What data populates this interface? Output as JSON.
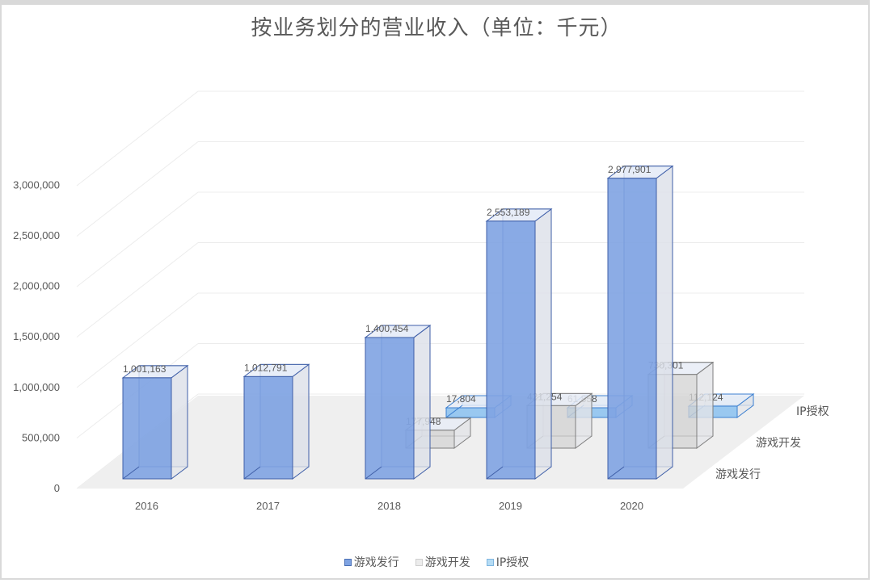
{
  "chart_data": {
    "type": "bar",
    "subtype": "3d-column",
    "title": "按业务划分的营业收入（单位：千元）",
    "xlabel": "",
    "ylabel": "",
    "categories": [
      "2016",
      "2017",
      "2018",
      "2019",
      "2020"
    ],
    "series": [
      {
        "name": "游戏发行",
        "values": [
          1001163,
          1012791,
          1400454,
          2553189,
          2977901
        ],
        "color": "#7fa3e2",
        "stroke": "#3f5fa8"
      },
      {
        "name": "游戏开发",
        "values": [
          null,
          null,
          177948,
          421254,
          730301
        ],
        "color": "#d3d3d3",
        "stroke": "#7f7f7f"
      },
      {
        "name": "IP授权",
        "values": [
          null,
          null,
          17804,
          61858,
          112124
        ],
        "color": "#8fc3ef",
        "stroke": "#3b7fd0"
      }
    ],
    "data_labels": {
      "游戏发行": [
        "1,001,163",
        "1,012,791",
        "1,400,454",
        "2,553,189",
        "2,977,901"
      ],
      "游戏开发": [
        "",
        "",
        "177,948",
        "421,254",
        "730,301"
      ],
      "IP授权": [
        "",
        "",
        "17,804",
        "61,858",
        "112,124"
      ]
    },
    "yticks": [
      "0",
      "500,000",
      "1,000,000",
      "1,500,000",
      "2,000,000",
      "2,500,000",
      "3,000,000"
    ],
    "ylim": [
      0,
      3000000
    ],
    "grid": true,
    "legend_position": "bottom"
  },
  "title": "按业务划分的营业收入（单位：千元）",
  "legend": [
    {
      "label": "游戏发行",
      "color": "#7fa3e2",
      "border": "#4a6fb5"
    },
    {
      "label": "游戏开发",
      "color": "#ececec",
      "border": "#cfcfcf"
    },
    {
      "label": "IP授权",
      "color": "#b5dcf5",
      "border": "#7fb6e0"
    }
  ]
}
